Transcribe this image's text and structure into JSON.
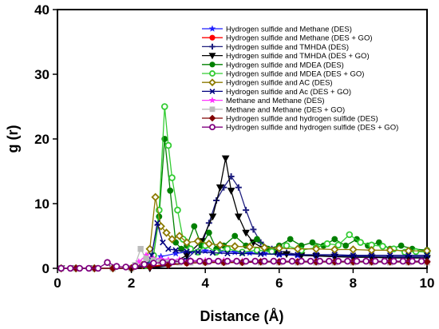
{
  "chart_data": {
    "type": "line",
    "title": "",
    "xlabel": "Distance (Å)",
    "ylabel": "g (r)",
    "xlim": [
      0,
      10
    ],
    "ylim": [
      0,
      40
    ],
    "xticks": [
      0,
      2,
      4,
      6,
      8,
      10
    ],
    "yticks": [
      0,
      10,
      20,
      30,
      40
    ],
    "grid": false,
    "legend_position": "top-right",
    "series": [
      {
        "name": "Hydrogen sulfide and Methane (DES)",
        "color": "#1f1fff",
        "marker": "star",
        "filled": true,
        "x": [
          0.1,
          0.5,
          1,
          1.5,
          2,
          2.5,
          2.8,
          3.2,
          3.6,
          4,
          4.4,
          4.8,
          5.2,
          5.6,
          6,
          6.5,
          7,
          7.5,
          8,
          8.5,
          9,
          9.5,
          10
        ],
        "y": [
          0,
          0,
          0,
          0,
          0,
          0.6,
          1.8,
          2.3,
          2.6,
          2.7,
          2.6,
          2.5,
          2.4,
          2.3,
          2.1,
          2.0,
          1.9,
          1.9,
          1.8,
          1.8,
          1.7,
          1.7,
          1.6
        ]
      },
      {
        "name": "Hydrogen sulfide and Methane (DES + GO)",
        "color": "#ff0000",
        "marker": "circle",
        "filled": true,
        "x": [
          0.1,
          0.5,
          1,
          1.5,
          2,
          2.5,
          3,
          3.5,
          4,
          4.5,
          5,
          5.5,
          6,
          6.5,
          7,
          7.5,
          8,
          8.5,
          9,
          9.5,
          10
        ],
        "y": [
          0,
          0,
          0,
          0,
          0,
          0.3,
          0.6,
          0.8,
          0.9,
          0.9,
          0.9,
          1.0,
          1.0,
          1.0,
          1.0,
          1.0,
          1.0,
          1.0,
          1.0,
          1.0,
          1.0
        ]
      },
      {
        "name": "Hydrogen sulfide and TMHDA (DES)",
        "color": "#1f1f7f",
        "marker": "plus",
        "filled": true,
        "x": [
          0.1,
          0.5,
          1,
          1.5,
          2,
          2.5,
          3,
          3.5,
          3.9,
          4.1,
          4.3,
          4.5,
          4.7,
          4.9,
          5.1,
          5.3,
          5.5,
          5.8,
          6.2,
          6.6,
          7,
          7.5,
          8,
          8.5,
          9,
          9.5,
          10
        ],
        "y": [
          0,
          0,
          0,
          0,
          0,
          0,
          0.4,
          1.5,
          3.5,
          7,
          10.5,
          12.5,
          14.2,
          12.5,
          9,
          6,
          4,
          3,
          2.4,
          2.1,
          2,
          1.9,
          1.9,
          1.8,
          1.8,
          1.8,
          1.8
        ]
      },
      {
        "name": "Hydrogen sulfide and TMHDA (DES + GO)",
        "color": "#000000",
        "marker": "triangle-down",
        "filled": true,
        "x": [
          0.1,
          0.5,
          1,
          1.5,
          2,
          2.5,
          3,
          3.5,
          3.9,
          4.2,
          4.4,
          4.55,
          4.7,
          4.9,
          5.1,
          5.3,
          5.6,
          5.9,
          6.2,
          6.6,
          7,
          7.5,
          8,
          8.5,
          9,
          9.5,
          10
        ],
        "y": [
          0,
          0,
          0,
          0,
          0,
          0,
          0.5,
          2,
          4.2,
          8,
          12.5,
          17,
          12,
          8,
          5.5,
          4,
          3,
          2.5,
          2.2,
          2,
          1.9,
          1.8,
          1.7,
          1.7,
          1.6,
          1.6,
          1.6
        ]
      },
      {
        "name": "Hydrogen sulfide and MDEA (DES)",
        "color": "#008000",
        "marker": "circle",
        "filled": true,
        "x": [
          0.1,
          0.5,
          1,
          1.5,
          2,
          2.4,
          2.6,
          2.75,
          2.9,
          3.05,
          3.2,
          3.35,
          3.5,
          3.7,
          3.9,
          4.1,
          4.3,
          4.5,
          4.8,
          5.1,
          5.4,
          5.7,
          6,
          6.3,
          6.6,
          6.9,
          7.2,
          7.5,
          7.8,
          8.1,
          8.4,
          8.7,
          9,
          9.3,
          9.6,
          10
        ],
        "y": [
          0,
          0,
          0,
          0,
          0,
          0.5,
          2,
          8,
          20,
          12,
          4,
          3,
          3.5,
          6.5,
          3.5,
          5.5,
          3,
          3.5,
          5,
          3.5,
          4.5,
          3,
          3.5,
          4.5,
          3.5,
          4,
          3.5,
          4.5,
          3.5,
          4.5,
          3.5,
          4,
          3,
          3.5,
          3,
          2.8
        ]
      },
      {
        "name": "Hydrogen sulfide and MDEA (DES + GO)",
        "color": "#33cc33",
        "marker": "circle",
        "filled": false,
        "x": [
          0.1,
          0.5,
          1,
          1.5,
          2,
          2.4,
          2.6,
          2.75,
          2.9,
          3.0,
          3.1,
          3.25,
          3.4,
          3.6,
          3.8,
          4,
          4.3,
          4.6,
          5,
          5.4,
          5.8,
          6.2,
          6.6,
          7,
          7.3,
          7.6,
          7.9,
          8.2,
          8.5,
          8.8,
          9.1,
          9.4,
          9.7,
          10
        ],
        "y": [
          0,
          0,
          0,
          0,
          0,
          0.4,
          2,
          9,
          25,
          19,
          14,
          9,
          4.5,
          3,
          2.5,
          3.5,
          2.5,
          3,
          2.5,
          2.8,
          2.6,
          3.5,
          2.8,
          3.2,
          3.8,
          3.6,
          5.2,
          4,
          3.6,
          3.4,
          3,
          2.5,
          2.6,
          2.5
        ]
      },
      {
        "name": "Hydrogen sulfide and AC (DES)",
        "color": "#8c7a00",
        "marker": "diamond",
        "filled": false,
        "x": [
          0.1,
          0.5,
          1,
          1.5,
          2,
          2.3,
          2.5,
          2.65,
          2.8,
          2.95,
          3.1,
          3.3,
          3.5,
          3.8,
          4.1,
          4.4,
          4.8,
          5.2,
          5.6,
          6,
          6.5,
          7,
          7.5,
          8,
          8.5,
          9,
          9.5,
          10
        ],
        "y": [
          0,
          0,
          0,
          0,
          0,
          0.5,
          3,
          11,
          6.5,
          5.5,
          4.5,
          5,
          4,
          4.2,
          3.8,
          3.6,
          3.4,
          3.3,
          3.2,
          3.1,
          3,
          3,
          2.9,
          2.9,
          2.8,
          2.8,
          2.7,
          2.7
        ]
      },
      {
        "name": "Hydrogen sulfide and Ac (DES + GO)",
        "color": "#000080",
        "marker": "x",
        "filled": false,
        "x": [
          0.1,
          0.5,
          1,
          1.5,
          2,
          2.4,
          2.55,
          2.7,
          2.85,
          3,
          3.2,
          3.5,
          3.8,
          4.2,
          4.6,
          5,
          5.5,
          6,
          6.5,
          7,
          7.5,
          8,
          8.5,
          9,
          9.5,
          10
        ],
        "y": [
          0,
          0,
          0,
          0,
          0,
          0.4,
          2,
          7,
          4,
          3,
          2.8,
          2.6,
          2.5,
          2.4,
          2.3,
          2.3,
          2.2,
          2.2,
          2.1,
          2.1,
          2.1,
          2.0,
          2.0,
          2.0,
          2.0,
          2.0
        ]
      },
      {
        "name": "Methane and Methane (DES)",
        "color": "#ff33ff",
        "marker": "star",
        "filled": true,
        "x": [
          0.1,
          0.5,
          1,
          1.5,
          2,
          2.2,
          2.4,
          2.6,
          2.8,
          3,
          3.3,
          3.6,
          4,
          4.5,
          5,
          5.5,
          6,
          6.5,
          7,
          7.5,
          8,
          8.5,
          9,
          9.5,
          10
        ],
        "y": [
          0,
          0,
          0,
          0,
          0,
          1,
          2,
          1.5,
          1.4,
          1.3,
          1.3,
          1.2,
          1.2,
          1.2,
          1.1,
          1.1,
          1.1,
          1.1,
          1.1,
          1.0,
          1.0,
          1.0,
          1.0,
          1.0,
          1.0
        ]
      },
      {
        "name": "Methane and Methane (DES + GO)",
        "color": "#bbbbbb",
        "marker": "square",
        "filled": true,
        "x": [
          0.1,
          0.5,
          1,
          1.5,
          2,
          2.1,
          2.25,
          2.4,
          2.6,
          2.8,
          3,
          3.3,
          3.6,
          4,
          4.5,
          5,
          5.5,
          6,
          6.5,
          7,
          7.5,
          8,
          8.5,
          9,
          9.5,
          10
        ],
        "y": [
          0,
          0,
          0,
          0,
          0,
          0.5,
          3,
          1.5,
          1.2,
          1.0,
          0.9,
          0.9,
          0.9,
          0.9,
          0.9,
          0.9,
          0.9,
          0.9,
          0.9,
          0.9,
          0.9,
          0.9,
          0.9,
          0.9,
          0.9,
          0.9
        ]
      },
      {
        "name": "Hydrogen sulfide and hydrogen sulfide (DES)",
        "color": "#800000",
        "marker": "diamond",
        "filled": true,
        "x": [
          0.1,
          0.5,
          1,
          1.5,
          2,
          2.5,
          3,
          3.5,
          4,
          4.5,
          5,
          5.5,
          6,
          6.5,
          7,
          7.5,
          8,
          8.5,
          9,
          9.5,
          10
        ],
        "y": [
          0,
          0,
          0,
          0,
          0,
          0.2,
          0.5,
          0.8,
          0.9,
          0.9,
          0.9,
          1.0,
          1.0,
          1.0,
          1.0,
          1.0,
          1.0,
          1.0,
          1.0,
          1.0,
          1.0
        ]
      },
      {
        "name": "Hydrogen sulfide and hydrogen sulfide (DES + GO)",
        "color": "#800080",
        "marker": "circle",
        "filled": false,
        "x": [
          0.1,
          0.35,
          0.6,
          0.85,
          1.1,
          1.35,
          1.6,
          1.85,
          2.1,
          2.35,
          2.6,
          2.85,
          3.1,
          3.35,
          3.6,
          3.85,
          4.1,
          4.35,
          4.6,
          4.85,
          5.1,
          5.35,
          5.6,
          5.85,
          6.1,
          6.35,
          6.6,
          6.85,
          7.1,
          7.35,
          7.6,
          7.85,
          8.1,
          8.35,
          8.6,
          8.85,
          9.1,
          9.35,
          9.6,
          9.85
        ],
        "y": [
          0,
          0,
          0,
          0,
          0,
          0.9,
          0.3,
          0.2,
          0.3,
          0.6,
          0.8,
          0.9,
          1.0,
          1.1,
          1.1,
          1.1,
          1.1,
          1.1,
          1.1,
          1.1,
          1.1,
          1.1,
          1.1,
          1.1,
          1.1,
          1.1,
          1.1,
          1.1,
          1.1,
          1.1,
          1.1,
          1.1,
          1.1,
          1.1,
          1.1,
          1.1,
          1.1,
          1.1,
          1.1,
          1.1
        ]
      }
    ]
  }
}
